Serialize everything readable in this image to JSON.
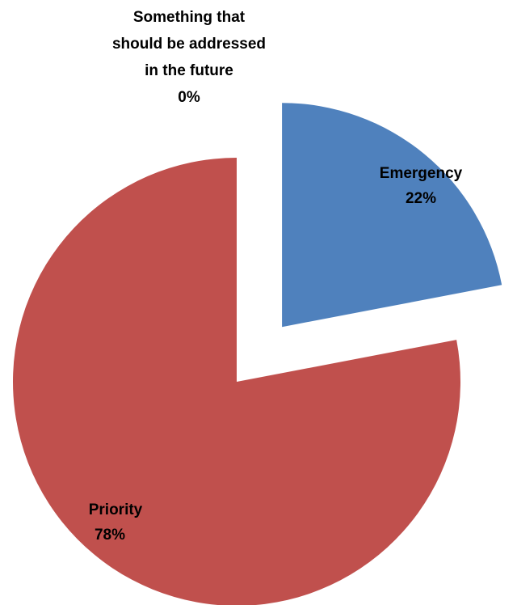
{
  "chart_data": {
    "type": "pie",
    "title": "",
    "slices": [
      {
        "label": "Emergency",
        "value": 22,
        "pct_label": "22%",
        "color": "#4F81BD",
        "exploded": true
      },
      {
        "label": "Priority",
        "value": 78,
        "pct_label": "78%",
        "color": "#C0504D",
        "exploded": false
      },
      {
        "label": "Something that should be addressed in the future",
        "label_lines": [
          "Something that",
          "should be addressed",
          "in the future"
        ],
        "value": 0,
        "pct_label": "0%",
        "color": "#9BBB59",
        "exploded": false
      }
    ]
  }
}
